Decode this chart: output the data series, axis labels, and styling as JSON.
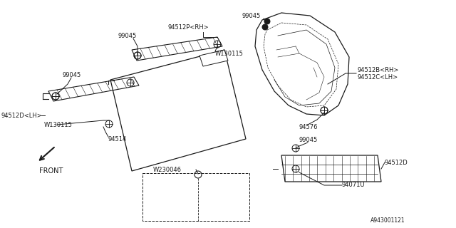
{
  "background_color": "#ffffff",
  "line_color": "#1a1a1a",
  "diagram_id": "A943001121",
  "figsize": [
    6.4,
    3.2
  ],
  "dpi": 100,
  "labels": {
    "94512P_RH": "94512P<RH>",
    "99045": "99045",
    "W130115": "W130115",
    "94512D_LH": "94512D<LH>",
    "94514": "94514",
    "W230046": "W230046",
    "FRONT": "FRONT",
    "94512B_RH": "94512B<RH>",
    "94512C_LH": "94512C<LH>",
    "94576": "94576",
    "94512D": "94512D",
    "94071U": "94071U"
  },
  "font_size": 6.0
}
